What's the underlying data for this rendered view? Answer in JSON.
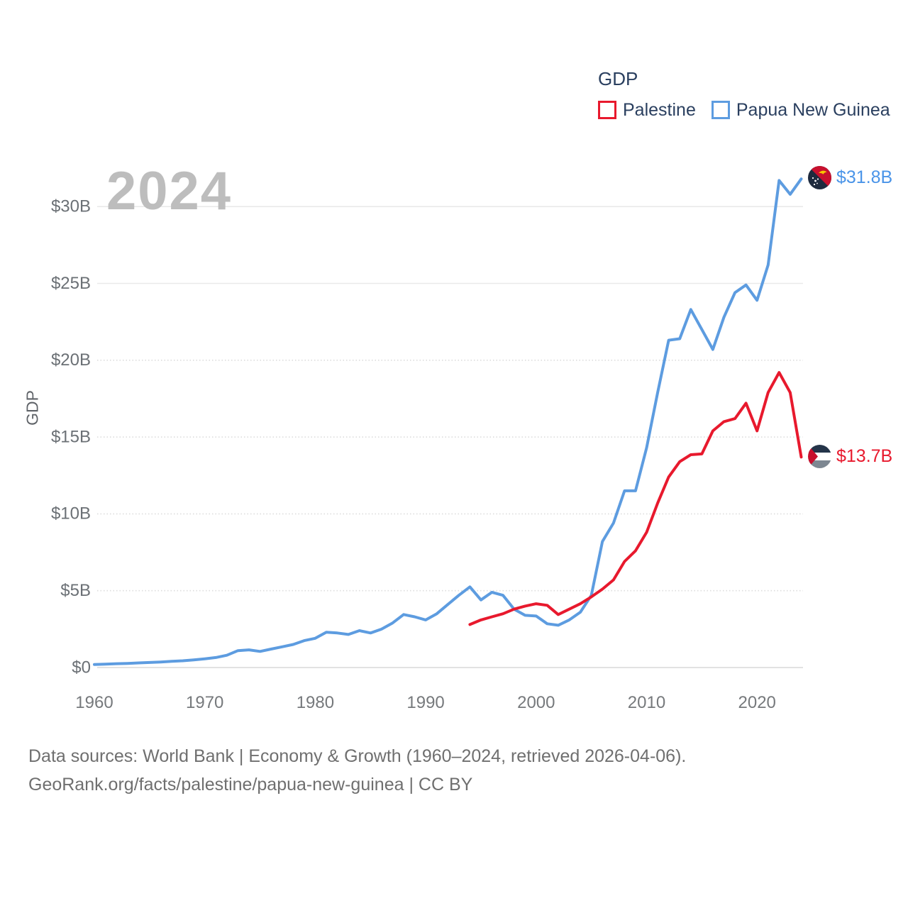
{
  "watermark": "2024",
  "legend": {
    "title": "GDP",
    "items": [
      {
        "label": "Palestine",
        "color": "#e8192d"
      },
      {
        "label": "Papua New Guinea",
        "color": "#5d9ce0"
      }
    ]
  },
  "end_labels": [
    {
      "series": "Papua New Guinea",
      "value_label": "$31.8B",
      "color": "#4a94e8",
      "flag": "papua-new-guinea"
    },
    {
      "series": "Palestine",
      "value_label": "$13.7B",
      "color": "#e8192d",
      "flag": "palestine"
    }
  ],
  "footer": {
    "line1": "Data sources: World Bank | Economy & Growth (1960–2024, retrieved 2026-04-06).",
    "line2": "GeoRank.org/facts/palestine/papua-new-guinea | CC BY"
  },
  "chart_data": {
    "type": "line",
    "title": "GDP",
    "xlabel": "",
    "ylabel": "GDP",
    "xlim": [
      1960,
      2024
    ],
    "ylim_billions": [
      0,
      32.5
    ],
    "grid": "horizontal-only",
    "legend_position": "top-right",
    "x_ticks": [
      {
        "value": 1960,
        "label": "1960"
      },
      {
        "value": 1970,
        "label": "1970"
      },
      {
        "value": 1980,
        "label": "1980"
      },
      {
        "value": 1990,
        "label": "1990"
      },
      {
        "value": 2000,
        "label": "2000"
      },
      {
        "value": 2010,
        "label": "2010"
      },
      {
        "value": 2020,
        "label": "2020"
      }
    ],
    "y_ticks": [
      {
        "value": 0,
        "label": "$0"
      },
      {
        "value": 5,
        "label": "$5B"
      },
      {
        "value": 10,
        "label": "$10B"
      },
      {
        "value": 15,
        "label": "$15B"
      },
      {
        "value": 20,
        "label": "$20B"
      },
      {
        "value": 25,
        "label": "$25B"
      },
      {
        "value": 30,
        "label": "$30B"
      }
    ],
    "series": [
      {
        "name": "Papua New Guinea",
        "color": "#5d9ce0",
        "unit": "billion USD",
        "frequency": "annual",
        "start_year": 1960,
        "end_year": 2024,
        "end_value_label": "$31.8B",
        "values": [
          0.2,
          0.22,
          0.25,
          0.27,
          0.3,
          0.33,
          0.36,
          0.4,
          0.44,
          0.5,
          0.57,
          0.65,
          0.8,
          1.1,
          1.15,
          1.05,
          1.2,
          1.35,
          1.5,
          1.75,
          1.9,
          2.3,
          2.25,
          2.15,
          2.4,
          2.25,
          2.5,
          2.9,
          3.45,
          3.3,
          3.1,
          3.5,
          4.1,
          4.7,
          5.25,
          4.4,
          4.9,
          4.7,
          3.8,
          3.4,
          3.35,
          2.85,
          2.75,
          3.1,
          3.6,
          4.7,
          8.2,
          9.4,
          11.5,
          11.5,
          14.3,
          17.9,
          21.3,
          21.4,
          23.3,
          22.0,
          20.7,
          22.8,
          24.4,
          24.9,
          23.9,
          26.2,
          31.7,
          30.8,
          31.8
        ]
      },
      {
        "name": "Palestine",
        "color": "#e8192d",
        "unit": "billion USD",
        "frequency": "annual",
        "start_year": 1994,
        "end_year": 2024,
        "end_value_label": "$13.7B",
        "values": [
          2.8,
          3.1,
          3.3,
          3.5,
          3.8,
          4.0,
          4.15,
          4.05,
          3.45,
          3.8,
          4.15,
          4.6,
          5.1,
          5.7,
          6.9,
          7.6,
          8.8,
          10.7,
          12.4,
          13.4,
          13.85,
          13.9,
          15.4,
          16.0,
          16.2,
          17.2,
          15.4,
          17.9,
          19.2,
          17.9,
          13.7
        ]
      }
    ]
  }
}
